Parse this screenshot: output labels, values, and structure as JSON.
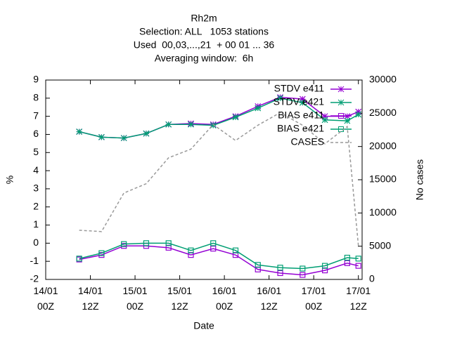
{
  "chart_data": {
    "type": "line",
    "title_lines": [
      "Rh2m",
      "Selection: ALL   1053 stations",
      "Used  00,03,...,21  + 00 01 ... 36",
      "Averaging window:  6h"
    ],
    "x_label": "Date",
    "y_label": "%",
    "y2_label": "No cases",
    "x": [
      9,
      15,
      21,
      27,
      33,
      39,
      45,
      51,
      57,
      63,
      69,
      75,
      81,
      84
    ],
    "xlim": [
      0,
      85
    ],
    "xticks": [
      {
        "value": 0,
        "label": "14/01\n00Z"
      },
      {
        "value": 12,
        "label": "14/01\n12Z"
      },
      {
        "value": 24,
        "label": "15/01\n00Z"
      },
      {
        "value": 36,
        "label": "15/01\n12Z"
      },
      {
        "value": 48,
        "label": "16/01\n00Z"
      },
      {
        "value": 60,
        "label": "16/01\n12Z"
      },
      {
        "value": 72,
        "label": "17/01\n00Z"
      },
      {
        "value": 84,
        "label": "17/01\n12Z"
      }
    ],
    "ylim": [
      -2,
      9
    ],
    "yticks": [
      -2,
      -1,
      0,
      1,
      2,
      3,
      4,
      5,
      6,
      7,
      8,
      9
    ],
    "y2lim": [
      0,
      30000
    ],
    "y2ticks": [
      0,
      5000,
      10000,
      15000,
      20000,
      25000,
      30000
    ],
    "series": [
      {
        "name": "STDV e411",
        "color": "#9400d3",
        "marker": "star",
        "values": [
          6.15,
          5.85,
          5.8,
          6.05,
          6.55,
          6.6,
          6.55,
          7.0,
          7.55,
          8.05,
          7.95,
          7.0,
          7.0,
          7.25
        ]
      },
      {
        "name": "STDV e421",
        "color": "#009e73",
        "marker": "star",
        "values": [
          6.15,
          5.85,
          5.8,
          6.05,
          6.55,
          6.55,
          6.5,
          6.95,
          7.45,
          8.0,
          7.75,
          6.8,
          6.75,
          7.1
        ]
      },
      {
        "name": "BIAS e411",
        "color": "#9400d3",
        "marker": "square",
        "values": [
          -0.9,
          -0.65,
          -0.15,
          -0.15,
          -0.25,
          -0.65,
          -0.3,
          -0.65,
          -1.45,
          -1.65,
          -1.75,
          -1.5,
          -1.1,
          -1.25
        ]
      },
      {
        "name": "BIAS e421",
        "color": "#009e73",
        "marker": "square",
        "values": [
          -0.85,
          -0.55,
          -0.05,
          0.0,
          0.0,
          -0.4,
          0.0,
          -0.4,
          -1.2,
          -1.35,
          -1.4,
          -1.25,
          -0.8,
          -0.85
        ]
      },
      {
        "name": "CASES",
        "color": "#999999",
        "marker": "none",
        "dashed": true,
        "axis": "y2",
        "values": [
          7400,
          7200,
          13000,
          14400,
          18300,
          19600,
          23300,
          20900,
          23200,
          25100,
          23200,
          20400,
          23000,
          5100
        ]
      }
    ]
  }
}
